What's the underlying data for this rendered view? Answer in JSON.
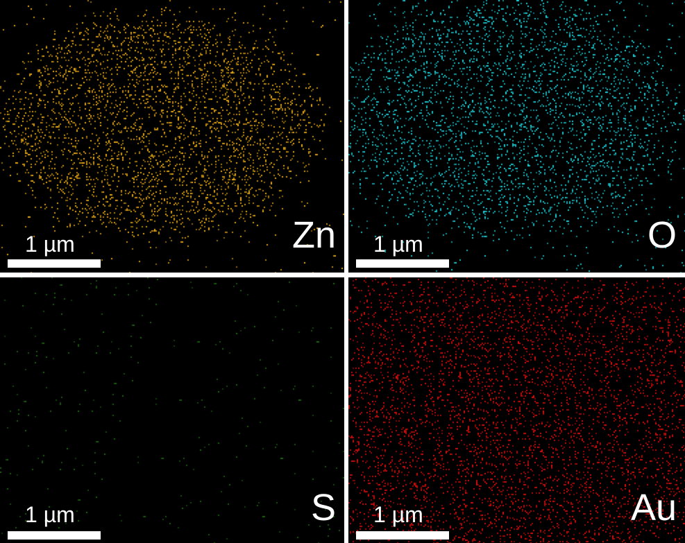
{
  "figure": {
    "panels": [
      {
        "element": "Zn",
        "scale_label": "1 µm",
        "dot_color": "#f2b21a",
        "density": "high"
      },
      {
        "element": "O",
        "scale_label": "1 µm",
        "dot_color": "#20d8e0",
        "density": "high"
      },
      {
        "element": "S",
        "scale_label": "1 µm",
        "dot_color": "#1f6a12",
        "density": "low"
      },
      {
        "element": "Au",
        "scale_label": "1 µm",
        "dot_color": "#e01010",
        "density": "high"
      }
    ]
  }
}
